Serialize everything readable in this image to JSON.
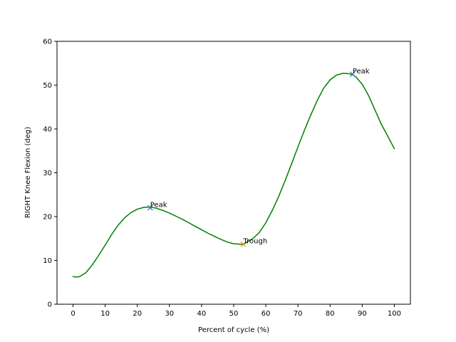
{
  "chart_data": {
    "type": "line",
    "title": "",
    "xlabel": "Percent of cycle (%)",
    "ylabel": "RIGHT Knee Flexion (deg)",
    "xlim": [
      -5,
      105
    ],
    "ylim": [
      0,
      60
    ],
    "xticks": [
      0,
      10,
      20,
      30,
      40,
      50,
      60,
      70,
      80,
      90,
      100
    ],
    "yticks": [
      0,
      10,
      20,
      30,
      40,
      50,
      60
    ],
    "xtick_labels": [
      "0",
      "10",
      "20",
      "30",
      "40",
      "50",
      "60",
      "70",
      "80",
      "90",
      "100"
    ],
    "ytick_labels": [
      "0",
      "10",
      "20",
      "30",
      "40",
      "50",
      "60"
    ],
    "grid": false,
    "series": [
      {
        "color": "#008000",
        "x": [
          0,
          1,
          2,
          4,
          6,
          8,
          10,
          12,
          14,
          16,
          18,
          20,
          22,
          24,
          26,
          28,
          30,
          32,
          34,
          36,
          38,
          40,
          42,
          44,
          46,
          48,
          50,
          52,
          53,
          54,
          56,
          58,
          60,
          62,
          64,
          66,
          68,
          70,
          72,
          74,
          76,
          78,
          80,
          82,
          84,
          86,
          87,
          88,
          90,
          92,
          94,
          96,
          98,
          100
        ],
        "y": [
          6.3,
          6.2,
          6.3,
          7.2,
          9.0,
          11.2,
          13.5,
          15.9,
          18.0,
          19.7,
          20.9,
          21.7,
          22.1,
          22.2,
          21.9,
          21.4,
          20.8,
          20.1,
          19.4,
          18.6,
          17.8,
          17.0,
          16.2,
          15.5,
          14.8,
          14.2,
          13.8,
          13.7,
          13.7,
          14.1,
          15.0,
          16.4,
          18.6,
          21.4,
          24.6,
          28.2,
          32.0,
          35.9,
          39.7,
          43.2,
          46.5,
          49.3,
          51.2,
          52.3,
          52.7,
          52.6,
          52.4,
          51.9,
          50.2,
          47.6,
          44.3,
          41.0,
          38.3,
          35.5
        ]
      }
    ],
    "markers": [
      {
        "label": "Peak",
        "x": 24,
        "y": 22.0,
        "color": "#1f77b4"
      },
      {
        "label": "Trough",
        "x": 53,
        "y": 13.7,
        "color": "#ff7f0e"
      },
      {
        "label": "Peak",
        "x": 87,
        "y": 52.5,
        "color": "#1f77b4"
      }
    ]
  }
}
